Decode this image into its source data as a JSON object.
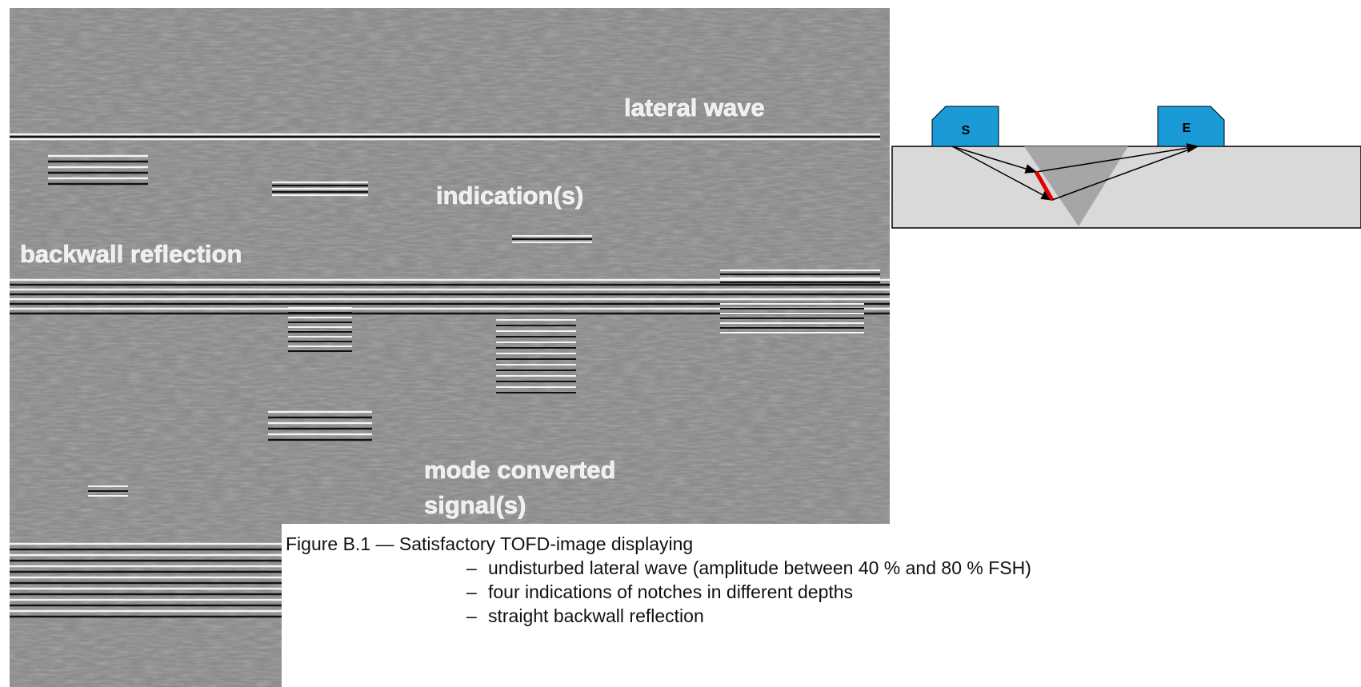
{
  "image": {
    "labels": {
      "lateral": "lateral wave",
      "indication": "indication(s)",
      "backwall": "backwall reflection",
      "mode1": "mode converted",
      "mode2": "signal(s)"
    }
  },
  "diagram": {
    "source": "S",
    "receiver": "E"
  },
  "caption": {
    "title": "Figure B.1 — Satisfactory TOFD-image displaying",
    "marker": "–",
    "items": [
      "undisturbed lateral wave (amplitude between 40 % and 80 % FSH)",
      "four indications of notches in different depths",
      "straight backwall reflection"
    ]
  }
}
